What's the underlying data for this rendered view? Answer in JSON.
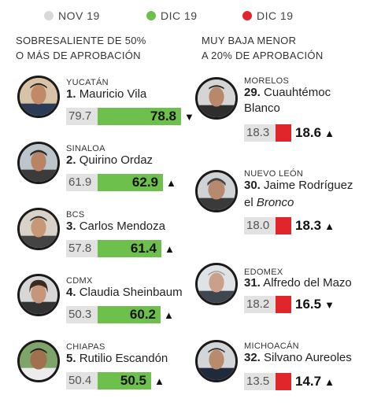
{
  "legend": [
    {
      "label": "NOV 19",
      "color": "#d9d9d9"
    },
    {
      "label": "DIC 19",
      "color": "#6dc04b"
    },
    {
      "label": "DIC 19",
      "color": "#e1262b"
    }
  ],
  "left_header": [
    "SOBRESALIENTE DE 50%",
    "O MÁS DE APROBACIÓN"
  ],
  "right_header": [
    "MUY BAJA MENOR",
    "A 20% DE APROBACIÓN"
  ],
  "left": [
    {
      "state": "YUCATÁN",
      "rank": "1.",
      "name": "Mauricio Vila",
      "prev": "79.7",
      "cur": "78.8",
      "arrow": "▼"
    },
    {
      "state": "SINALOA",
      "rank": "2.",
      "name": "Quirino Ordaz",
      "prev": "61.9",
      "cur": "62.9",
      "arrow": "▲"
    },
    {
      "state": "BCS",
      "rank": "3.",
      "name": "Carlos Mendoza",
      "prev": "57.8",
      "cur": "61.4",
      "arrow": "▲"
    },
    {
      "state": "CDMX",
      "rank": "4.",
      "name": "Claudia Sheinbaum",
      "prev": "50.3",
      "cur": "60.2",
      "arrow": "▲"
    },
    {
      "state": "CHIAPAS",
      "rank": "5.",
      "name": "Rutilio Escandón",
      "prev": "50.4",
      "cur": "50.5",
      "arrow": "▲"
    }
  ],
  "right": [
    {
      "state": "MORELOS",
      "rank": "29.",
      "name1": "Cuauhtémoc",
      "name2": "Blanco",
      "name2_italic": "",
      "prev": "18.3",
      "cur": "18.6",
      "arrow": "▲"
    },
    {
      "state": "NUEVO LEÓN",
      "rank": "30.",
      "name1": "Jaime Rodríguez",
      "name2": "el ",
      "name2_italic": "Bronco",
      "prev": "18.0",
      "cur": "18.3",
      "arrow": "▲"
    },
    {
      "state": "EDOMEX",
      "rank": "31.",
      "name1": "Alfredo del Mazo",
      "name2": "",
      "name2_italic": "",
      "prev": "18.2",
      "cur": "16.5",
      "arrow": "▼"
    },
    {
      "state": "MICHOACÁN",
      "rank": "32.",
      "name1": "Silvano Aureoles",
      "name2": "",
      "name2_italic": "",
      "prev": "13.5",
      "cur": "14.7",
      "arrow": "▲"
    }
  ]
}
